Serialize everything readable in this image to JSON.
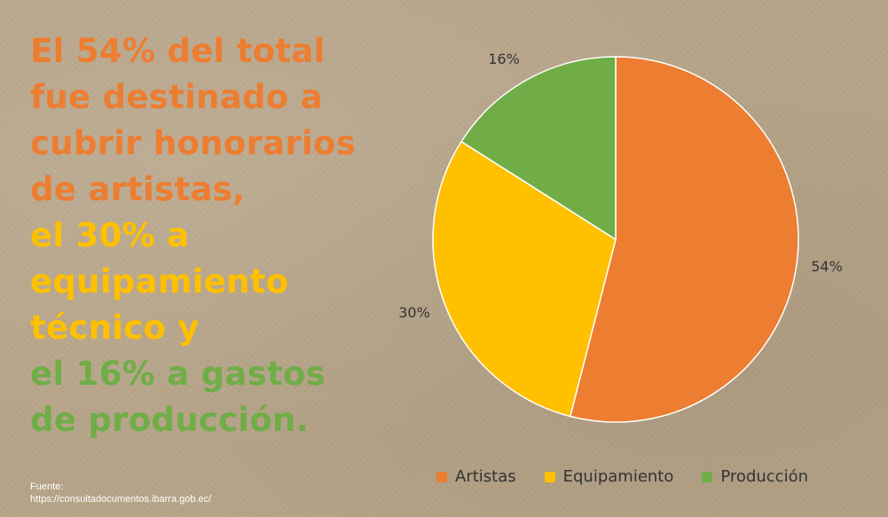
{
  "headline": {
    "lines": [
      {
        "text": "El 54%  del total",
        "color": "#ED7D31"
      },
      {
        "text": "fue destinado a",
        "color": "#ED7D31"
      },
      {
        "text": "cubrir honorarios",
        "color": "#ED7D31"
      },
      {
        "text": "de artistas,",
        "color": "#ED7D31"
      },
      {
        "text": "el 30% a",
        "color": "#FFC000"
      },
      {
        "text": "equipamiento",
        "color": "#FFC000"
      },
      {
        "text": "técnico y",
        "color": "#FFC000"
      },
      {
        "text": "el 16% a gastos",
        "color": "#70AD47"
      },
      {
        "text": "de producción.",
        "color": "#70AD47"
      }
    ]
  },
  "source": {
    "label": "Fuente:",
    "url": "https://consultadocumentos.ibarra.gob.ec/"
  },
  "chart_data": {
    "type": "pie",
    "categories": [
      "Artistas",
      "Equipamiento",
      "Producción"
    ],
    "values": [
      54,
      30,
      16
    ],
    "labels": [
      "54%",
      "30%",
      "16%"
    ],
    "colors": [
      "#ED7D31",
      "#FFC000",
      "#70AD47"
    ],
    "legend_position": "bottom",
    "start_angle": "12 o'clock",
    "direction": "clockwise"
  }
}
